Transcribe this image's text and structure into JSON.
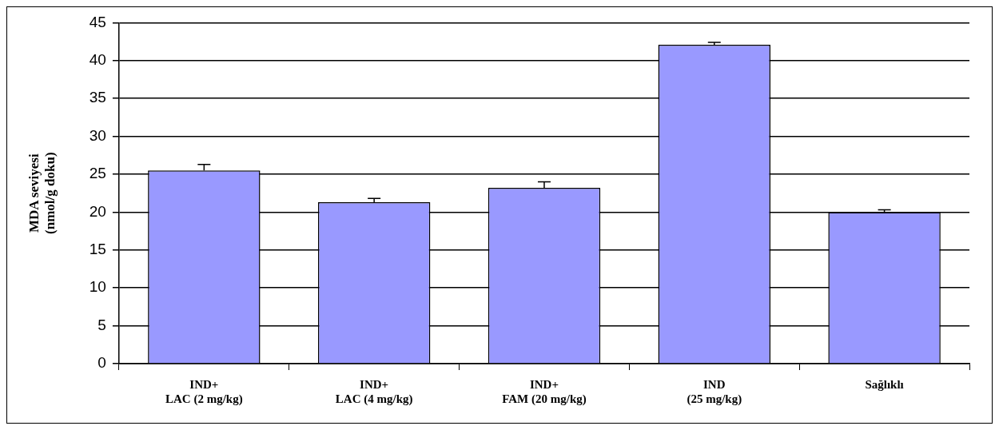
{
  "chart_data": {
    "type": "bar",
    "ylabel": "MDA seviyesi\n(nmol/g doku)",
    "categories": [
      "IND+\nLAC (2 mg/kg)",
      "IND+\nLAC (4 mg/kg)",
      "IND+\nFAM (20 mg/kg)",
      "IND\n(25 mg/kg)",
      "Sağlıklı"
    ],
    "values": [
      25.5,
      21.3,
      23.2,
      42.1,
      20.0
    ],
    "errors": [
      0.8,
      0.5,
      0.8,
      0.3,
      0.3
    ],
    "color": "#9999ff",
    "ylim": [
      0,
      45
    ],
    "yticks": [
      0,
      5,
      10,
      15,
      20,
      25,
      30,
      35,
      40,
      45
    ],
    "grid": "y",
    "legend": false
  }
}
